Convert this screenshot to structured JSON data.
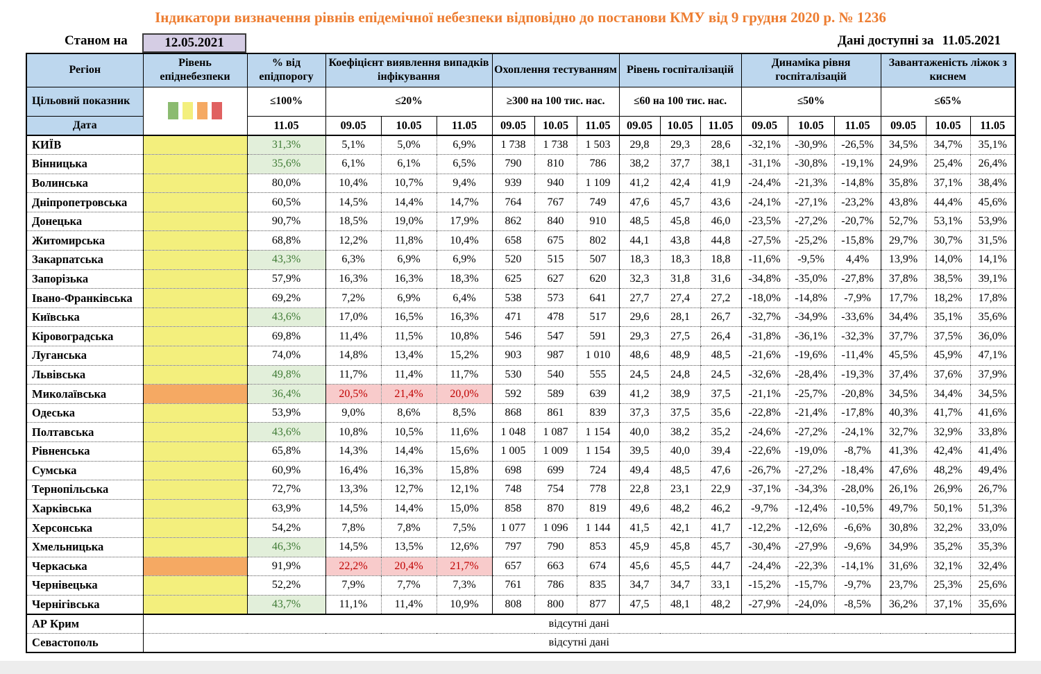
{
  "title": "Індикатори визначення рівнів епідемічної небезпеки відповідно до постанови КМУ від 9 грудня 2020 р. № 1236",
  "as_of": {
    "label": "Станом на",
    "date": "12.05.2021"
  },
  "data_available": {
    "label": "Дані доступні за",
    "date": "11.05.2021"
  },
  "header": {
    "region": "Регіон",
    "target_row_label": "Цільовий показник",
    "date_row_label": "Дата",
    "groups": [
      {
        "label": "Рівень епіднебезпеки"
      },
      {
        "label": "% від епідпорогу",
        "target": "≤100%",
        "dates": [
          "11.05"
        ]
      },
      {
        "label": "Коефіцієнт виявлення випадків інфікування",
        "target": "≤20%",
        "dates": [
          "09.05",
          "10.05",
          "11.05"
        ]
      },
      {
        "label": "Охоплення тестуванням",
        "target": "≥300 на 100 тис. нас.",
        "dates": [
          "09.05",
          "10.05",
          "11.05"
        ]
      },
      {
        "label": "Рівень госпіталізацій",
        "target": "≤60 на 100 тис. нас.",
        "dates": [
          "09.05",
          "10.05",
          "11.05"
        ]
      },
      {
        "label": "Динаміка рівня госпіталізацій",
        "target": "≤50%",
        "dates": [
          "09.05",
          "10.05",
          "11.05"
        ]
      },
      {
        "label": "Завантаженість ліжок з киснем",
        "target": "≤65%",
        "dates": [
          "09.05",
          "10.05",
          "11.05"
        ]
      }
    ]
  },
  "colors": {
    "legend": [
      "#8bbb70",
      "#f3ef7d",
      "#f5a963",
      "#e06161"
    ],
    "level": {
      "yellow": "#f3ef7d",
      "orange": "#f5a963"
    },
    "good_bg": "#e2efda",
    "good_text": "#3e7a34",
    "bad_bg": "#f8cbcb",
    "bad_text": "#c00000",
    "header_bg": "#bdd7ee",
    "asof_bg": "#d5cde4",
    "title_text": "#ed7d31"
  },
  "no_data_text": "відсутні дані",
  "no_data_rows": [
    "АР Крим",
    "Севастополь"
  ],
  "rows": [
    {
      "region": "КИЇВ",
      "level": "yellow",
      "pct": "31,3%",
      "pct_good": true,
      "detect": [
        "5,1%",
        "5,0%",
        "6,9%"
      ],
      "detect_bad": false,
      "test": [
        "1 738",
        "1 738",
        "1 503"
      ],
      "hosp": [
        "29,8",
        "29,3",
        "28,6"
      ],
      "dyn": [
        "-32,1%",
        "-30,9%",
        "-26,5%"
      ],
      "beds": [
        "34,5%",
        "34,7%",
        "35,1%"
      ]
    },
    {
      "region": "Вінницька",
      "level": "yellow",
      "pct": "35,6%",
      "pct_good": true,
      "detect": [
        "6,1%",
        "6,1%",
        "6,5%"
      ],
      "detect_bad": false,
      "test": [
        "790",
        "810",
        "786"
      ],
      "hosp": [
        "38,2",
        "37,7",
        "38,1"
      ],
      "dyn": [
        "-31,1%",
        "-30,8%",
        "-19,1%"
      ],
      "beds": [
        "24,9%",
        "25,4%",
        "26,4%"
      ]
    },
    {
      "region": "Волинська",
      "level": "yellow",
      "pct": "80,0%",
      "pct_good": false,
      "detect": [
        "10,4%",
        "10,7%",
        "9,4%"
      ],
      "detect_bad": false,
      "test": [
        "939",
        "940",
        "1 109"
      ],
      "hosp": [
        "41,2",
        "42,4",
        "41,9"
      ],
      "dyn": [
        "-24,4%",
        "-21,3%",
        "-14,8%"
      ],
      "beds": [
        "35,8%",
        "37,1%",
        "38,4%"
      ]
    },
    {
      "region": "Дніпропетровська",
      "level": "yellow",
      "pct": "60,5%",
      "pct_good": false,
      "detect": [
        "14,5%",
        "14,4%",
        "14,7%"
      ],
      "detect_bad": false,
      "test": [
        "764",
        "767",
        "749"
      ],
      "hosp": [
        "47,6",
        "45,7",
        "43,6"
      ],
      "dyn": [
        "-24,1%",
        "-27,1%",
        "-23,2%"
      ],
      "beds": [
        "43,8%",
        "44,4%",
        "45,6%"
      ]
    },
    {
      "region": "Донецька",
      "level": "yellow",
      "pct": "90,7%",
      "pct_good": false,
      "detect": [
        "18,5%",
        "19,0%",
        "17,9%"
      ],
      "detect_bad": false,
      "test": [
        "862",
        "840",
        "910"
      ],
      "hosp": [
        "48,5",
        "45,8",
        "46,0"
      ],
      "dyn": [
        "-23,5%",
        "-27,2%",
        "-20,7%"
      ],
      "beds": [
        "52,7%",
        "53,1%",
        "53,9%"
      ]
    },
    {
      "region": "Житомирська",
      "level": "yellow",
      "pct": "68,8%",
      "pct_good": false,
      "detect": [
        "12,2%",
        "11,8%",
        "10,4%"
      ],
      "detect_bad": false,
      "test": [
        "658",
        "675",
        "802"
      ],
      "hosp": [
        "44,1",
        "43,8",
        "44,8"
      ],
      "dyn": [
        "-27,5%",
        "-25,2%",
        "-15,8%"
      ],
      "beds": [
        "29,7%",
        "30,7%",
        "31,5%"
      ]
    },
    {
      "region": "Закарпатська",
      "level": "yellow",
      "pct": "43,3%",
      "pct_good": true,
      "detect": [
        "6,3%",
        "6,9%",
        "6,9%"
      ],
      "detect_bad": false,
      "test": [
        "520",
        "515",
        "507"
      ],
      "hosp": [
        "18,3",
        "18,3",
        "18,8"
      ],
      "dyn": [
        "-11,6%",
        "-9,5%",
        "4,4%"
      ],
      "beds": [
        "13,9%",
        "14,0%",
        "14,1%"
      ]
    },
    {
      "region": "Запорізька",
      "level": "yellow",
      "pct": "57,9%",
      "pct_good": false,
      "detect": [
        "16,3%",
        "16,3%",
        "18,3%"
      ],
      "detect_bad": false,
      "test": [
        "625",
        "627",
        "620"
      ],
      "hosp": [
        "32,3",
        "31,8",
        "31,6"
      ],
      "dyn": [
        "-34,8%",
        "-35,0%",
        "-27,8%"
      ],
      "beds": [
        "37,8%",
        "38,5%",
        "39,1%"
      ]
    },
    {
      "region": "Івано-Франківська",
      "level": "yellow",
      "pct": "69,2%",
      "pct_good": false,
      "detect": [
        "7,2%",
        "6,9%",
        "6,4%"
      ],
      "detect_bad": false,
      "test": [
        "538",
        "573",
        "641"
      ],
      "hosp": [
        "27,7",
        "27,4",
        "27,2"
      ],
      "dyn": [
        "-18,0%",
        "-14,8%",
        "-7,9%"
      ],
      "beds": [
        "17,7%",
        "18,2%",
        "17,8%"
      ]
    },
    {
      "region": "Київська",
      "level": "yellow",
      "pct": "43,6%",
      "pct_good": true,
      "detect": [
        "17,0%",
        "16,5%",
        "16,3%"
      ],
      "detect_bad": false,
      "test": [
        "471",
        "478",
        "517"
      ],
      "hosp": [
        "29,6",
        "28,1",
        "26,7"
      ],
      "dyn": [
        "-32,7%",
        "-34,9%",
        "-33,6%"
      ],
      "beds": [
        "34,4%",
        "35,1%",
        "35,6%"
      ]
    },
    {
      "region": "Кіровоградська",
      "level": "yellow",
      "pct": "69,8%",
      "pct_good": false,
      "detect": [
        "11,4%",
        "11,5%",
        "10,8%"
      ],
      "detect_bad": false,
      "test": [
        "546",
        "547",
        "591"
      ],
      "hosp": [
        "29,3",
        "27,5",
        "26,4"
      ],
      "dyn": [
        "-31,8%",
        "-36,1%",
        "-32,3%"
      ],
      "beds": [
        "37,7%",
        "37,5%",
        "36,0%"
      ]
    },
    {
      "region": "Луганська",
      "level": "yellow",
      "pct": "74,0%",
      "pct_good": false,
      "detect": [
        "14,8%",
        "13,4%",
        "15,2%"
      ],
      "detect_bad": false,
      "test": [
        "903",
        "987",
        "1 010"
      ],
      "hosp": [
        "48,6",
        "48,9",
        "48,5"
      ],
      "dyn": [
        "-21,6%",
        "-19,6%",
        "-11,4%"
      ],
      "beds": [
        "45,5%",
        "45,9%",
        "47,1%"
      ]
    },
    {
      "region": "Львівська",
      "level": "yellow",
      "pct": "49,8%",
      "pct_good": true,
      "detect": [
        "11,7%",
        "11,4%",
        "11,7%"
      ],
      "detect_bad": false,
      "test": [
        "530",
        "540",
        "555"
      ],
      "hosp": [
        "24,5",
        "24,8",
        "24,5"
      ],
      "dyn": [
        "-32,6%",
        "-28,4%",
        "-19,3%"
      ],
      "beds": [
        "37,4%",
        "37,6%",
        "37,9%"
      ]
    },
    {
      "region": "Миколаївська",
      "level": "orange",
      "pct": "36,4%",
      "pct_good": true,
      "detect": [
        "20,5%",
        "21,4%",
        "20,0%"
      ],
      "detect_bad": true,
      "test": [
        "592",
        "589",
        "639"
      ],
      "hosp": [
        "41,2",
        "38,9",
        "37,5"
      ],
      "dyn": [
        "-21,1%",
        "-25,7%",
        "-20,8%"
      ],
      "beds": [
        "34,5%",
        "34,4%",
        "34,5%"
      ]
    },
    {
      "region": "Одеська",
      "level": "yellow",
      "pct": "53,9%",
      "pct_good": false,
      "detect": [
        "9,0%",
        "8,6%",
        "8,5%"
      ],
      "detect_bad": false,
      "test": [
        "868",
        "861",
        "839"
      ],
      "hosp": [
        "37,3",
        "37,5",
        "35,6"
      ],
      "dyn": [
        "-22,8%",
        "-21,4%",
        "-17,8%"
      ],
      "beds": [
        "40,3%",
        "41,7%",
        "41,6%"
      ]
    },
    {
      "region": "Полтавська",
      "level": "yellow",
      "pct": "43,6%",
      "pct_good": true,
      "detect": [
        "10,8%",
        "10,5%",
        "11,6%"
      ],
      "detect_bad": false,
      "test": [
        "1 048",
        "1 087",
        "1 154"
      ],
      "hosp": [
        "40,0",
        "38,2",
        "35,2"
      ],
      "dyn": [
        "-24,6%",
        "-27,2%",
        "-24,1%"
      ],
      "beds": [
        "32,7%",
        "32,9%",
        "33,8%"
      ]
    },
    {
      "region": "Рівненська",
      "level": "yellow",
      "pct": "65,8%",
      "pct_good": false,
      "detect": [
        "14,3%",
        "14,4%",
        "15,6%"
      ],
      "detect_bad": false,
      "test": [
        "1 005",
        "1 009",
        "1 154"
      ],
      "hosp": [
        "39,5",
        "40,0",
        "39,4"
      ],
      "dyn": [
        "-22,6%",
        "-19,0%",
        "-8,7%"
      ],
      "beds": [
        "41,3%",
        "42,4%",
        "41,4%"
      ]
    },
    {
      "region": "Сумська",
      "level": "yellow",
      "pct": "60,9%",
      "pct_good": false,
      "detect": [
        "16,4%",
        "16,3%",
        "15,8%"
      ],
      "detect_bad": false,
      "test": [
        "698",
        "699",
        "724"
      ],
      "hosp": [
        "49,4",
        "48,5",
        "47,6"
      ],
      "dyn": [
        "-26,7%",
        "-27,2%",
        "-18,4%"
      ],
      "beds": [
        "47,6%",
        "48,2%",
        "49,4%"
      ]
    },
    {
      "region": "Тернопільська",
      "level": "yellow",
      "pct": "72,7%",
      "pct_good": false,
      "detect": [
        "13,3%",
        "12,7%",
        "12,1%"
      ],
      "detect_bad": false,
      "test": [
        "748",
        "754",
        "778"
      ],
      "hosp": [
        "22,8",
        "23,1",
        "22,9"
      ],
      "dyn": [
        "-37,1%",
        "-34,3%",
        "-28,0%"
      ],
      "beds": [
        "26,1%",
        "26,9%",
        "26,7%"
      ]
    },
    {
      "region": "Харківська",
      "level": "yellow",
      "pct": "63,9%",
      "pct_good": false,
      "detect": [
        "14,5%",
        "14,4%",
        "15,0%"
      ],
      "detect_bad": false,
      "test": [
        "858",
        "870",
        "819"
      ],
      "hosp": [
        "49,6",
        "48,2",
        "46,2"
      ],
      "dyn": [
        "-9,7%",
        "-12,4%",
        "-10,5%"
      ],
      "beds": [
        "49,7%",
        "50,1%",
        "51,3%"
      ]
    },
    {
      "region": "Херсонська",
      "level": "yellow",
      "pct": "54,2%",
      "pct_good": false,
      "detect": [
        "7,8%",
        "7,8%",
        "7,5%"
      ],
      "detect_bad": false,
      "test": [
        "1 077",
        "1 096",
        "1 144"
      ],
      "hosp": [
        "41,5",
        "42,1",
        "41,7"
      ],
      "dyn": [
        "-12,2%",
        "-12,6%",
        "-6,6%"
      ],
      "beds": [
        "30,8%",
        "32,2%",
        "33,0%"
      ]
    },
    {
      "region": "Хмельницька",
      "level": "yellow",
      "pct": "46,3%",
      "pct_good": true,
      "detect": [
        "14,5%",
        "13,5%",
        "12,6%"
      ],
      "detect_bad": false,
      "test": [
        "797",
        "790",
        "853"
      ],
      "hosp": [
        "45,9",
        "45,8",
        "45,7"
      ],
      "dyn": [
        "-30,4%",
        "-27,9%",
        "-9,6%"
      ],
      "beds": [
        "34,9%",
        "35,2%",
        "35,3%"
      ]
    },
    {
      "region": "Черкаська",
      "level": "orange",
      "pct": "91,9%",
      "pct_good": false,
      "detect": [
        "22,2%",
        "20,4%",
        "21,7%"
      ],
      "detect_bad": true,
      "test": [
        "657",
        "663",
        "674"
      ],
      "hosp": [
        "45,6",
        "45,5",
        "44,7"
      ],
      "dyn": [
        "-24,4%",
        "-22,3%",
        "-14,1%"
      ],
      "beds": [
        "31,6%",
        "32,1%",
        "32,4%"
      ]
    },
    {
      "region": "Чернівецька",
      "level": "yellow",
      "pct": "52,2%",
      "pct_good": false,
      "detect": [
        "7,9%",
        "7,7%",
        "7,3%"
      ],
      "detect_bad": false,
      "test": [
        "761",
        "786",
        "835"
      ],
      "hosp": [
        "34,7",
        "34,7",
        "33,1"
      ],
      "dyn": [
        "-15,2%",
        "-15,7%",
        "-9,7%"
      ],
      "beds": [
        "23,7%",
        "25,3%",
        "25,6%"
      ]
    },
    {
      "region": "Чернігівська",
      "level": "yellow",
      "pct": "43,7%",
      "pct_good": true,
      "detect": [
        "11,1%",
        "11,4%",
        "10,9%"
      ],
      "detect_bad": false,
      "test": [
        "808",
        "800",
        "877"
      ],
      "hosp": [
        "47,5",
        "48,1",
        "48,2"
      ],
      "dyn": [
        "-27,9%",
        "-24,0%",
        "-8,5%"
      ],
      "beds": [
        "36,2%",
        "37,1%",
        "35,6%"
      ]
    }
  ]
}
